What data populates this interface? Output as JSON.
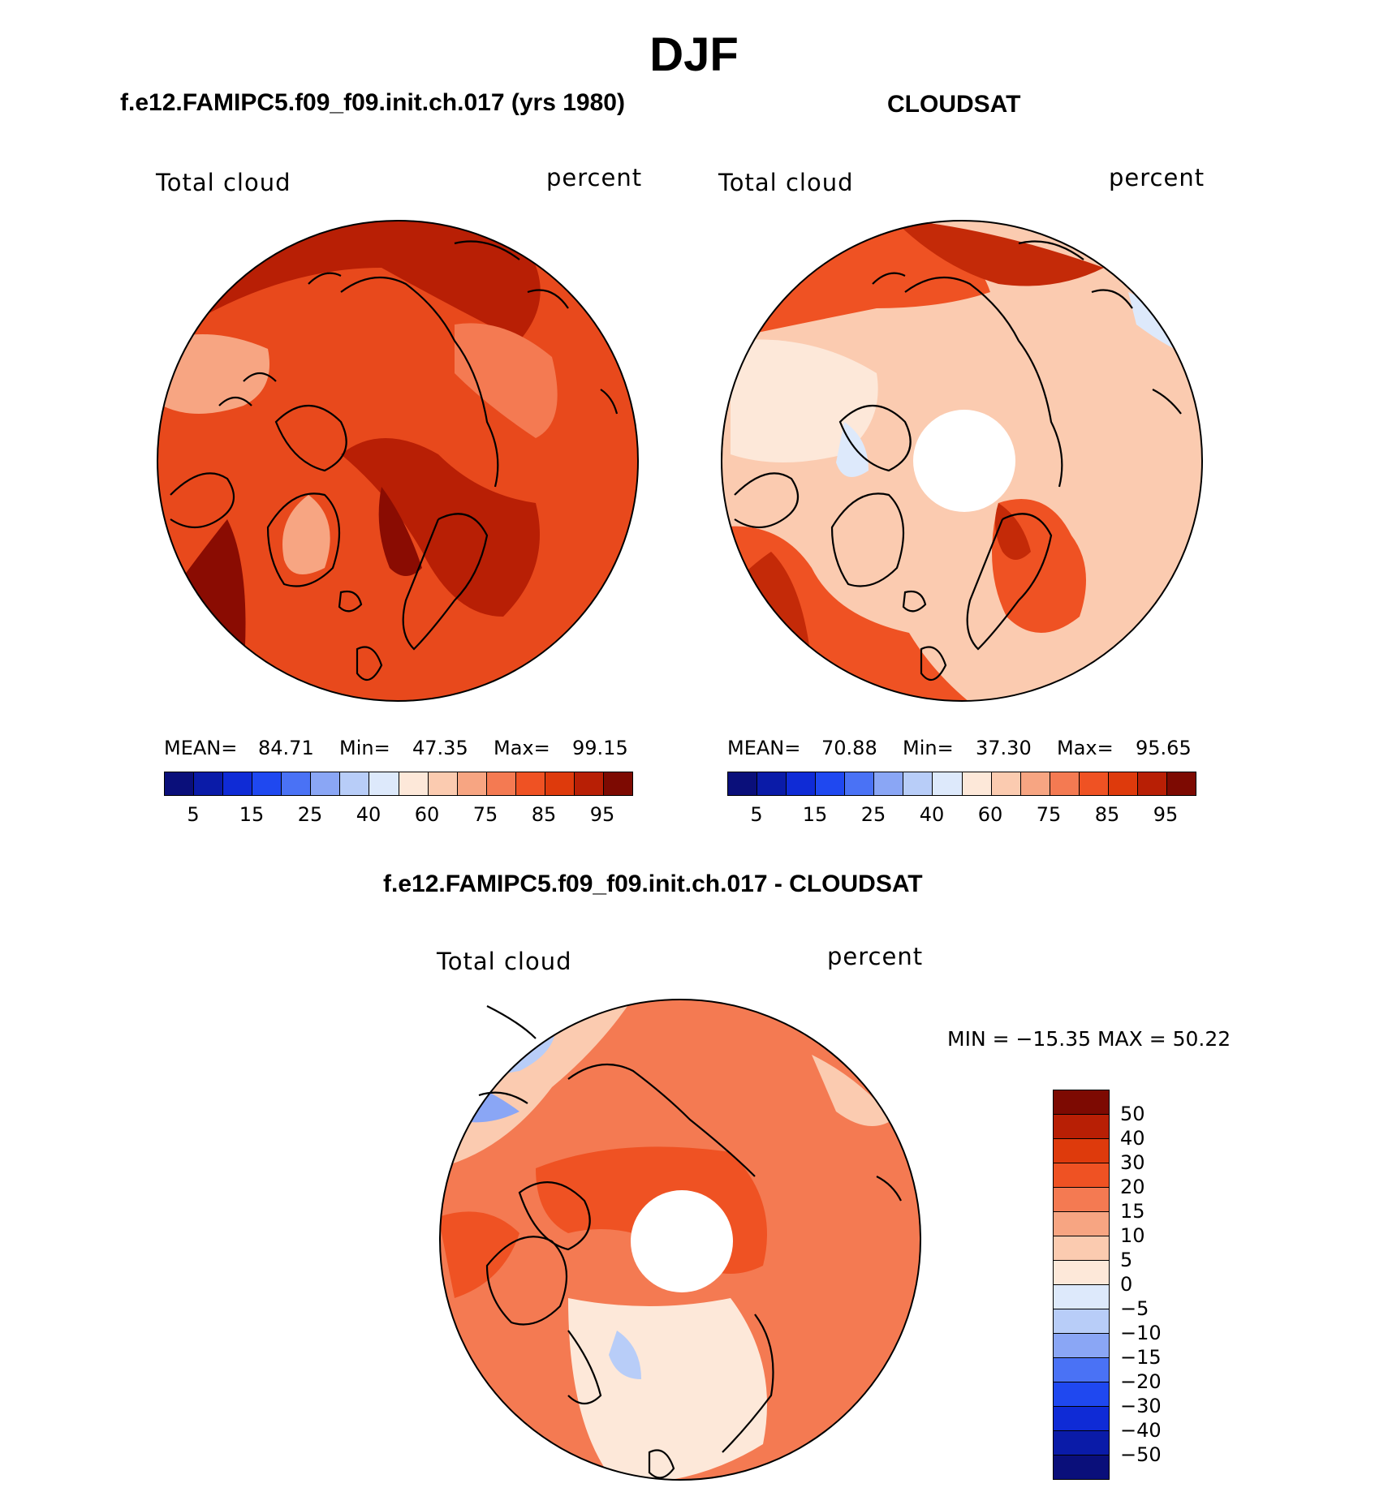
{
  "title": "DJF",
  "panels": [
    {
      "subtitle": "f.e12.FAMIPC5.f09_f09.init.ch.017 (yrs 1980)",
      "var_label": "Total cloud",
      "units": "percent",
      "mean_label": "MEAN=",
      "mean": "84.71",
      "min_label": "Min=",
      "min": "47.35",
      "max_label": "Max=",
      "max": "99.15"
    },
    {
      "subtitle": "CLOUDSAT",
      "var_label": "Total cloud",
      "units": "percent",
      "mean_label": "MEAN=",
      "mean": "70.88",
      "min_label": "Min=",
      "min": "37.30",
      "max_label": "Max=",
      "max": "95.65"
    },
    {
      "subtitle": "f.e12.FAMIPC5.f09_f09.init.ch.017 - CLOUDSAT",
      "var_label": "Total cloud",
      "units": "percent",
      "minmax_text": "MIN = −15.35 MAX =   50.22"
    }
  ],
  "colorbar_abs": {
    "colors": [
      "#0a0f7a",
      "#0a1ba8",
      "#0f2bd6",
      "#1f48f0",
      "#4a72f5",
      "#8aa6f5",
      "#b8cdf8",
      "#dde9fb",
      "#fde8d9",
      "#fbcbb0",
      "#f7a582",
      "#f47a52",
      "#ef5223",
      "#de3a0c",
      "#b81f05",
      "#7d0a02"
    ],
    "ticks": [
      "5",
      "15",
      "25",
      "40",
      "60",
      "75",
      "85",
      "95"
    ]
  },
  "colorbar_diff": {
    "colors": [
      "#7d0a02",
      "#b81f05",
      "#de3a0c",
      "#ef5223",
      "#f47a52",
      "#f7a582",
      "#fbcbb0",
      "#fde8d9",
      "#dde9fb",
      "#b8cdf8",
      "#8aa6f5",
      "#4a72f5",
      "#1f48f0",
      "#0f2bd6",
      "#0a1ba8",
      "#0a0f7a"
    ],
    "ticks": [
      "50",
      "40",
      "30",
      "20",
      "15",
      "10",
      "5",
      "0",
      "−5",
      "−10",
      "−15",
      "−20",
      "−30",
      "−40",
      "−50"
    ]
  },
  "map_colors": {
    "model_base": "#e8491c",
    "model_dark": "#b81f05",
    "model_darkest": "#8a0c02",
    "model_light": "#f7a582",
    "obs_base": "#fbcbb0",
    "obs_light": "#fde8d9",
    "obs_red": "#ef5223",
    "obs_dark": "#c42a08",
    "obs_blue": "#dde9fb",
    "diff_base": "#f47a52",
    "diff_red": "#ef5223",
    "diff_light": "#fde8d9",
    "diff_pale": "#fbcbb0",
    "diff_blue": "#b8cdf8",
    "diff_blue2": "#8aa6f5",
    "coast": "#000000"
  }
}
